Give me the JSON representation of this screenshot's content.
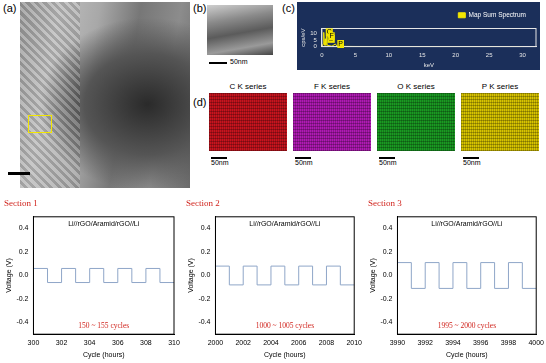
{
  "panels": {
    "a": {
      "label": "(a)"
    },
    "b": {
      "label": "(b)",
      "scale_bar": "50nm"
    },
    "c": {
      "label": "(c)"
    },
    "d": {
      "label": "(d)",
      "maps": [
        {
          "title": "C K series",
          "color": "#c8141e",
          "scale_bar": "50nm"
        },
        {
          "title": "F K series",
          "color": "#b01ab4",
          "scale_bar": "50nm"
        },
        {
          "title": "O K series",
          "color": "#1a9a22",
          "scale_bar": "50nm"
        },
        {
          "title": "P K series",
          "color": "#d8c400",
          "scale_bar": "50nm"
        }
      ]
    }
  },
  "chart_data": [
    {
      "type": "line",
      "x_label": "keV",
      "y_label": "cps/eV",
      "x": [
        0,
        0.2,
        0.28,
        0.4,
        0.52,
        0.6,
        0.68,
        0.8,
        1.5,
        2.01,
        2.3,
        5,
        10,
        20,
        30
      ],
      "series": [
        {
          "name": "Map Sum Spectrum",
          "color": "#f2e600",
          "values": [
            0,
            2,
            11,
            1,
            6,
            1,
            8,
            1,
            0.3,
            2,
            0.2,
            0.1,
            0.05,
            0,
            0
          ]
        }
      ],
      "annotations": [
        {
          "text": "C",
          "x": 0.28,
          "y": 11
        },
        {
          "text": "O",
          "x": 0.52,
          "y": 6
        },
        {
          "text": "F",
          "x": 0.68,
          "y": 8
        },
        {
          "text": "P",
          "x": 2.01,
          "y": 2
        }
      ],
      "xlim": [
        0,
        32
      ],
      "xticks": [
        0,
        5,
        10,
        15,
        20,
        25,
        30
      ],
      "ylim": [
        0,
        14
      ],
      "yticks": [
        0,
        5,
        10
      ],
      "legend": "top-right",
      "grid": false
    },
    {
      "type": "line",
      "title": "Section 1",
      "subtitle": "Li//rGO/Aramid/rGO//Li",
      "annotation": "150 ~ 155 cycles",
      "x_label": "Cycle (hours)",
      "y_label": "Voltage (V)",
      "x": [
        300,
        301,
        302,
        303,
        304,
        305,
        306,
        307,
        308,
        309,
        310
      ],
      "values": [
        -0.06,
        0.06,
        -0.06,
        0.06,
        -0.06,
        0.06,
        -0.06,
        0.06,
        -0.06,
        0.06,
        -0.06
      ],
      "color": "#8fa6c8",
      "line_style": "steps",
      "xlim": [
        300,
        310
      ],
      "xticks": [
        300,
        302,
        304,
        306,
        308,
        310
      ],
      "ylim": [
        -0.5,
        0.5
      ],
      "yticks": [
        -0.4,
        -0.2,
        {
          "value": 0,
          "label": "0.0"
        },
        0.2,
        0.4
      ],
      "grid": false
    },
    {
      "type": "line",
      "title": "Section 2",
      "subtitle": "Li//rGO/Aramid/rGO//Li",
      "annotation": "1000 ~ 1005 cycles",
      "x_label": "Cycle (hours)",
      "y_label": "Voltage (V)",
      "x": [
        2000,
        2001,
        2002,
        2003,
        2004,
        2005,
        2006,
        2007,
        2008,
        2009,
        2010
      ],
      "values": [
        -0.08,
        0.08,
        -0.08,
        0.08,
        -0.08,
        0.08,
        -0.08,
        0.08,
        -0.08,
        0.08,
        -0.08
      ],
      "color": "#8fa6c8",
      "line_style": "steps",
      "xlim": [
        2000,
        2010
      ],
      "xticks": [
        2000,
        2002,
        2004,
        2006,
        2008,
        2010
      ],
      "ylim": [
        -0.5,
        0.5
      ],
      "yticks": [
        -0.4,
        -0.2,
        {
          "value": 0,
          "label": "0.0"
        },
        0.2,
        0.4
      ],
      "grid": false
    },
    {
      "type": "line",
      "title": "Section 3",
      "subtitle": "Li//rGO/Aramid/rGO//Li",
      "annotation": "1995 ~ 2000 cycles",
      "x_label": "Cycle (hours)",
      "y_label": "Voltage (V)",
      "x": [
        3990,
        3991,
        3992,
        3993,
        3994,
        3995,
        3996,
        3997,
        3998,
        3999,
        4000
      ],
      "values": [
        -0.11,
        0.11,
        -0.11,
        0.11,
        -0.11,
        0.11,
        -0.11,
        0.11,
        -0.11,
        0.11,
        -0.11
      ],
      "color": "#8fa6c8",
      "line_style": "steps",
      "xlim": [
        3990,
        4000
      ],
      "xticks": [
        3990,
        3992,
        3994,
        3996,
        3998,
        4000
      ],
      "ylim": [
        -0.5,
        0.5
      ],
      "yticks": [
        -0.4,
        -0.2,
        {
          "value": 0,
          "label": "0.0"
        },
        0.2,
        0.4
      ],
      "grid": false
    }
  ]
}
